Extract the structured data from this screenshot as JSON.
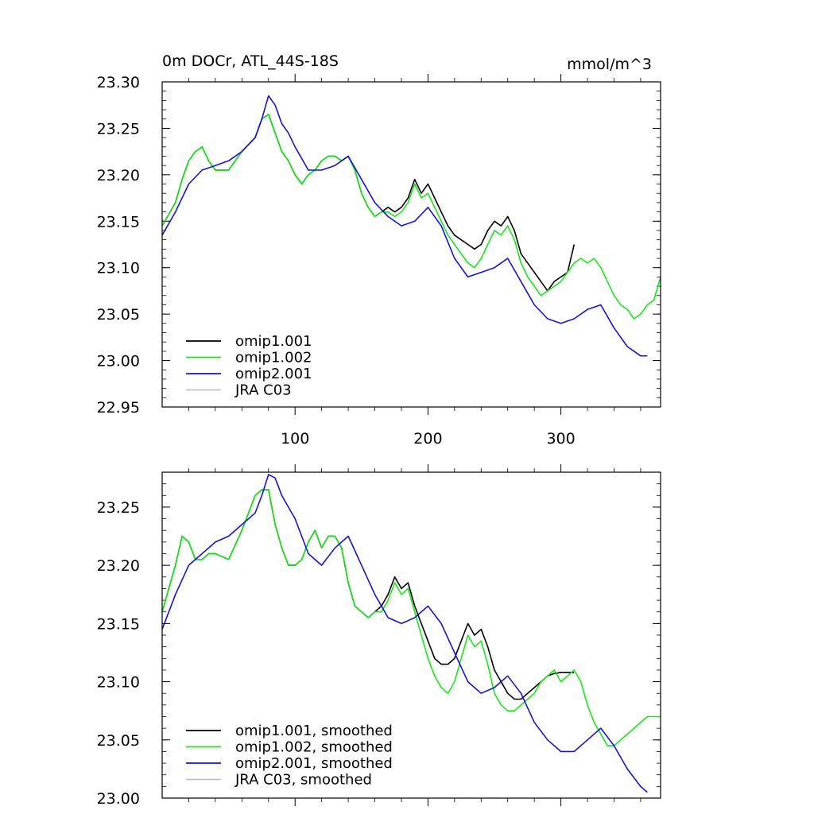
{
  "chart_data": [
    {
      "type": "line",
      "title": "0m DOCr, ATL_44S-18S",
      "units": "mmol/m^3",
      "xlabel": "",
      "ylabel": "",
      "xlim": [
        0,
        375
      ],
      "ylim": [
        22.95,
        23.3
      ],
      "xticks": [
        100,
        200,
        300
      ],
      "xtick_labels": [
        "100",
        "200",
        "300"
      ],
      "yticks": [
        22.95,
        23.0,
        23.05,
        23.1,
        23.15,
        23.2,
        23.25,
        23.3
      ],
      "ytick_labels": [
        "22.95",
        "23.00",
        "23.05",
        "23.10",
        "23.15",
        "23.20",
        "23.25",
        "23.30"
      ],
      "legend_position": "bottom-left",
      "series": [
        {
          "name": "omip1.001",
          "color": "#000000",
          "x": [
            0,
            10,
            15,
            20,
            25,
            30,
            35,
            40,
            50,
            60,
            70,
            75,
            80,
            85,
            90,
            95,
            100,
            105,
            110,
            115,
            120,
            125,
            130,
            135,
            140,
            145,
            150,
            155,
            160,
            165,
            170,
            175,
            180,
            185,
            190,
            195,
            200,
            205,
            210,
            215,
            220,
            225,
            230,
            235,
            240,
            245,
            250,
            255,
            260,
            265,
            270,
            275,
            280,
            285,
            290,
            295,
            300,
            305,
            310
          ],
          "values": [
            23.145,
            23.17,
            23.195,
            23.215,
            23.225,
            23.23,
            23.215,
            23.205,
            23.205,
            23.225,
            23.24,
            23.26,
            23.265,
            23.245,
            23.225,
            23.215,
            23.2,
            23.19,
            23.2,
            23.205,
            23.215,
            23.22,
            23.22,
            23.215,
            23.22,
            23.205,
            23.18,
            23.165,
            23.155,
            23.16,
            23.165,
            23.16,
            23.165,
            23.175,
            23.195,
            23.18,
            23.19,
            23.175,
            23.16,
            23.145,
            23.135,
            23.13,
            23.125,
            23.12,
            23.125,
            23.14,
            23.15,
            23.145,
            23.155,
            23.14,
            23.115,
            23.105,
            23.095,
            23.085,
            23.075,
            23.085,
            23.09,
            23.095,
            23.125
          ]
        },
        {
          "name": "omip1.002",
          "color": "#19e619",
          "x": [
            0,
            10,
            15,
            20,
            25,
            30,
            35,
            40,
            50,
            60,
            70,
            75,
            80,
            85,
            90,
            95,
            100,
            105,
            110,
            115,
            120,
            125,
            130,
            135,
            140,
            145,
            150,
            155,
            160,
            165,
            170,
            175,
            180,
            185,
            190,
            195,
            200,
            205,
            210,
            215,
            220,
            225,
            230,
            235,
            240,
            245,
            250,
            255,
            260,
            265,
            270,
            275,
            280,
            285,
            290,
            295,
            300,
            305,
            310,
            315,
            320,
            325,
            330,
            335,
            340,
            345,
            350,
            355,
            360,
            365,
            370,
            375
          ],
          "values": [
            23.145,
            23.17,
            23.195,
            23.215,
            23.225,
            23.23,
            23.215,
            23.205,
            23.205,
            23.225,
            23.24,
            23.26,
            23.265,
            23.245,
            23.225,
            23.215,
            23.2,
            23.19,
            23.2,
            23.205,
            23.215,
            23.22,
            23.22,
            23.215,
            23.22,
            23.205,
            23.18,
            23.165,
            23.155,
            23.16,
            23.16,
            23.155,
            23.16,
            23.17,
            23.19,
            23.175,
            23.18,
            23.165,
            23.15,
            23.135,
            23.125,
            23.115,
            23.105,
            23.1,
            23.11,
            23.125,
            23.14,
            23.135,
            23.145,
            23.13,
            23.105,
            23.09,
            23.08,
            23.07,
            23.075,
            23.08,
            23.085,
            23.095,
            23.105,
            23.11,
            23.105,
            23.11,
            23.1,
            23.085,
            23.07,
            23.06,
            23.055,
            23.045,
            23.05,
            23.06,
            23.065,
            23.09
          ]
        },
        {
          "name": "omip2.001",
          "color": "#1414d6",
          "x": [
            0,
            10,
            20,
            30,
            40,
            50,
            60,
            70,
            75,
            80,
            85,
            90,
            95,
            100,
            110,
            120,
            130,
            140,
            150,
            160,
            170,
            180,
            190,
            200,
            210,
            220,
            230,
            240,
            250,
            260,
            270,
            280,
            290,
            300,
            310,
            320,
            330,
            340,
            350,
            360,
            365
          ],
          "values": [
            23.135,
            23.16,
            23.19,
            23.205,
            23.21,
            23.215,
            23.225,
            23.24,
            23.26,
            23.285,
            23.275,
            23.255,
            23.245,
            23.23,
            23.205,
            23.205,
            23.21,
            23.22,
            23.195,
            23.17,
            23.155,
            23.145,
            23.15,
            23.165,
            23.145,
            23.11,
            23.09,
            23.095,
            23.1,
            23.11,
            23.085,
            23.06,
            23.045,
            23.04,
            23.045,
            23.055,
            23.06,
            23.035,
            23.015,
            23.005,
            23.005
          ]
        },
        {
          "name": "JRA C03",
          "color": "#c0c0c0",
          "x": [],
          "values": []
        }
      ]
    },
    {
      "type": "line",
      "title": "",
      "xlabel": "",
      "ylabel": "",
      "xlim": [
        0,
        375
      ],
      "ylim": [
        23.0,
        23.28
      ],
      "xticks": [
        100,
        200,
        300
      ],
      "xtick_labels": [],
      "yticks": [
        23.0,
        23.05,
        23.1,
        23.15,
        23.2,
        23.25
      ],
      "ytick_labels": [
        "23.00",
        "23.05",
        "23.10",
        "23.15",
        "23.20",
        "23.25"
      ],
      "legend_position": "bottom-left",
      "series": [
        {
          "name": "omip1.001, smoothed",
          "color": "#000000",
          "x": [
            0,
            10,
            15,
            20,
            25,
            30,
            35,
            40,
            50,
            60,
            70,
            75,
            80,
            85,
            90,
            95,
            100,
            105,
            110,
            115,
            120,
            125,
            130,
            135,
            140,
            145,
            150,
            155,
            160,
            165,
            170,
            175,
            180,
            185,
            190,
            195,
            200,
            205,
            210,
            215,
            220,
            225,
            230,
            235,
            240,
            245,
            250,
            255,
            260,
            265,
            270,
            275,
            280,
            285,
            290,
            295,
            300,
            305,
            310
          ],
          "values": [
            23.16,
            23.2,
            23.225,
            23.22,
            23.205,
            23.205,
            23.21,
            23.21,
            23.205,
            23.23,
            23.26,
            23.265,
            23.265,
            23.235,
            23.215,
            23.2,
            23.2,
            23.205,
            23.22,
            23.23,
            23.215,
            23.225,
            23.225,
            23.215,
            23.185,
            23.165,
            23.16,
            23.155,
            23.16,
            23.165,
            23.175,
            23.19,
            23.18,
            23.185,
            23.165,
            23.15,
            23.135,
            23.12,
            23.115,
            23.115,
            23.12,
            23.135,
            23.15,
            23.14,
            23.145,
            23.13,
            23.11,
            23.1,
            23.09,
            23.085,
            23.085,
            23.09,
            23.095,
            23.1,
            23.105,
            23.107,
            23.108,
            23.108,
            23.108
          ]
        },
        {
          "name": "omip1.002, smoothed",
          "color": "#19e619",
          "x": [
            0,
            10,
            15,
            20,
            25,
            30,
            35,
            40,
            50,
            60,
            70,
            75,
            80,
            85,
            90,
            95,
            100,
            105,
            110,
            115,
            120,
            125,
            130,
            135,
            140,
            145,
            150,
            155,
            160,
            165,
            170,
            175,
            180,
            185,
            190,
            195,
            200,
            205,
            210,
            215,
            220,
            225,
            230,
            235,
            240,
            245,
            250,
            255,
            260,
            265,
            270,
            275,
            280,
            285,
            290,
            295,
            300,
            305,
            310,
            315,
            320,
            325,
            330,
            335,
            340,
            345,
            350,
            355,
            360,
            365,
            370,
            375
          ],
          "values": [
            23.16,
            23.2,
            23.225,
            23.22,
            23.205,
            23.205,
            23.21,
            23.21,
            23.205,
            23.23,
            23.26,
            23.265,
            23.265,
            23.235,
            23.215,
            23.2,
            23.2,
            23.205,
            23.22,
            23.23,
            23.215,
            23.225,
            23.225,
            23.215,
            23.185,
            23.165,
            23.16,
            23.155,
            23.16,
            23.16,
            23.17,
            23.185,
            23.175,
            23.18,
            23.16,
            23.14,
            23.12,
            23.105,
            23.095,
            23.09,
            23.1,
            23.12,
            23.14,
            23.13,
            23.135,
            23.115,
            23.09,
            23.08,
            23.075,
            23.075,
            23.08,
            23.085,
            23.09,
            23.1,
            23.105,
            23.11,
            23.1,
            23.105,
            23.11,
            23.1,
            23.08,
            23.065,
            23.055,
            23.045,
            23.045,
            23.05,
            23.055,
            23.06,
            23.065,
            23.07,
            23.07,
            23.07
          ]
        },
        {
          "name": "omip2.001, smoothed",
          "color": "#1414d6",
          "x": [
            0,
            10,
            20,
            30,
            40,
            50,
            60,
            70,
            75,
            80,
            85,
            90,
            95,
            100,
            110,
            120,
            130,
            140,
            150,
            160,
            170,
            180,
            190,
            200,
            210,
            220,
            230,
            240,
            250,
            260,
            270,
            280,
            290,
            300,
            310,
            320,
            330,
            340,
            350,
            360,
            365
          ],
          "values": [
            23.145,
            23.175,
            23.2,
            23.21,
            23.22,
            23.225,
            23.235,
            23.245,
            23.26,
            23.278,
            23.275,
            23.26,
            23.25,
            23.24,
            23.21,
            23.2,
            23.215,
            23.225,
            23.2,
            23.175,
            23.155,
            23.15,
            23.155,
            23.165,
            23.15,
            23.125,
            23.1,
            23.09,
            23.095,
            23.105,
            23.09,
            23.065,
            23.05,
            23.04,
            23.04,
            23.05,
            23.06,
            23.045,
            23.025,
            23.01,
            23.005
          ]
        },
        {
          "name": "JRA C03, smoothed",
          "color": "#c0c0c0",
          "x": [],
          "values": []
        }
      ]
    }
  ]
}
